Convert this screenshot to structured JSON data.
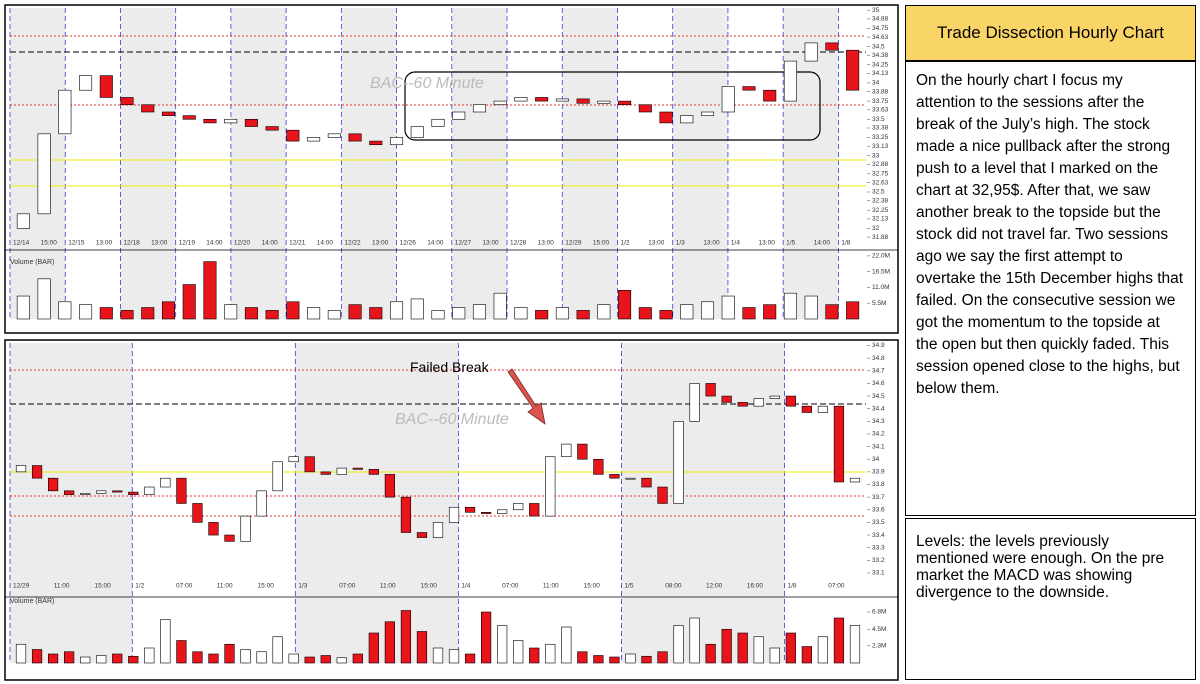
{
  "header": {
    "title": "Trade Dissection Hourly Chart"
  },
  "commentary": {
    "text": "On the hourly chart I focus my attention to the sessions after the break of the July’s high. The stock made a nice pullback after the strong push to a level that I marked on the chart at 32,95$. After that, we saw  another break to the topside but the stock did not travel far. Two sessions ago we say the first attempt to overtake the 15th December highs that failed. On the consecutive session we got the momentum to the topside at the open but then quickly faded. This session opened close to the highs, but below them."
  },
  "levels": {
    "text": "Levels: the levels previously mentioned were enough. On the pre market the MACD was showing divergence to the downside."
  },
  "charts": [
    {
      "type": "candlestick",
      "watermark": "BAC--60 Minute",
      "volume_label": "Volume (BAR)",
      "ylim": [
        31.84,
        35.03
      ],
      "yticks": [
        35,
        34.88,
        34.75,
        34.63,
        34.5,
        34.38,
        34.25,
        34.13,
        34,
        33.88,
        33.75,
        33.63,
        33.5,
        33.38,
        33.25,
        33.13,
        33,
        32.88,
        32.75,
        32.63,
        32.5,
        32.38,
        32.25,
        32.13,
        32,
        31.88
      ],
      "x_labels": [
        "12/14",
        "15:00",
        "12/15",
        "13:00",
        "12/18",
        "13:00",
        "12/19",
        "14:00",
        "12/20",
        "14:00",
        "12/21",
        "14:00",
        "12/22",
        "13:00",
        "12/26",
        "14:00",
        "12/27",
        "13:00",
        "12/28",
        "13:00",
        "12/29",
        "15:00",
        "1/2",
        "13:00",
        "1/3",
        "13:00",
        "1/4",
        "13:00",
        "1/5",
        "14:00",
        "1/8"
      ],
      "open": [
        32.0,
        32.2,
        33.3,
        33.9,
        34.1,
        33.8,
        33.7,
        33.6,
        33.55,
        33.5,
        33.45,
        33.5,
        33.4,
        33.35,
        33.2,
        33.25,
        33.3,
        33.2,
        33.15,
        33.25,
        33.4,
        33.5,
        33.6,
        33.7,
        33.75,
        33.8,
        33.75,
        33.78,
        33.72,
        33.75,
        33.7,
        33.6,
        33.45,
        33.55,
        33.6,
        33.95,
        33.9,
        33.75,
        34.3,
        34.55,
        34.45
      ],
      "close": [
        32.2,
        33.3,
        33.9,
        34.1,
        33.8,
        33.7,
        33.6,
        33.55,
        33.5,
        33.45,
        33.5,
        33.4,
        33.35,
        33.2,
        33.25,
        33.3,
        33.2,
        33.15,
        33.25,
        33.4,
        33.5,
        33.6,
        33.7,
        33.75,
        33.8,
        33.75,
        33.78,
        33.72,
        33.75,
        33.7,
        33.6,
        33.45,
        33.55,
        33.6,
        33.95,
        33.9,
        33.75,
        34.3,
        34.55,
        34.45,
        33.9
      ],
      "volume": [
        8,
        14,
        6,
        5,
        4,
        3,
        4,
        6,
        12,
        20,
        5,
        4,
        3,
        6,
        4,
        3,
        5,
        4,
        6,
        7,
        3,
        4,
        5,
        9,
        4,
        3,
        4,
        3,
        5,
        10,
        4,
        3,
        5,
        6,
        8,
        4,
        5,
        9,
        8,
        5,
        6
      ],
      "vlim": [
        0,
        23
      ],
      "vticks": [
        {
          "value": 22,
          "label": "22.0M"
        },
        {
          "value": 16.5,
          "label": "16.5M"
        },
        {
          "value": 11,
          "label": "11.0M"
        },
        {
          "value": 5.5,
          "label": "5.5M"
        }
      ]
    },
    {
      "type": "candlestick",
      "watermark": "BAC--60 Minute",
      "volume_label": "Volume (BAR)",
      "annotation": "Failed Break",
      "ylim": [
        33.06,
        34.92
      ],
      "yticks": [
        34.9,
        34.8,
        34.7,
        34.6,
        34.5,
        34.4,
        34.3,
        34.2,
        34.1,
        34,
        33.9,
        33.8,
        33.7,
        33.6,
        33.5,
        33.4,
        33.3,
        33.2,
        33.1
      ],
      "x_labels": [
        "12/29",
        "11:00",
        "15:00",
        "1/2",
        "07:00",
        "11:00",
        "15:00",
        "1/3",
        "07:00",
        "11:00",
        "15:00",
        "1/4",
        "07:00",
        "11:00",
        "15:00",
        "1/5",
        "08:00",
        "12:00",
        "16:00",
        "1/8",
        "07:00"
      ],
      "open": [
        33.9,
        33.95,
        33.85,
        33.75,
        33.72,
        33.73,
        33.75,
        33.74,
        33.72,
        33.78,
        33.85,
        33.65,
        33.5,
        33.4,
        33.35,
        33.55,
        33.75,
        33.98,
        34.02,
        33.9,
        33.88,
        33.93,
        33.92,
        33.88,
        33.7,
        33.42,
        33.38,
        33.5,
        33.62,
        33.58,
        33.57,
        33.6,
        33.65,
        33.55,
        34.02,
        34.12,
        34.0,
        33.88,
        33.85,
        33.85,
        33.78,
        33.65,
        34.3,
        34.6,
        34.5,
        34.45,
        34.42,
        34.48,
        34.5,
        34.42,
        34.37,
        34.42,
        33.82
      ],
      "close": [
        33.95,
        33.85,
        33.75,
        33.72,
        33.73,
        33.75,
        33.74,
        33.72,
        33.78,
        33.85,
        33.65,
        33.5,
        33.4,
        33.35,
        33.55,
        33.75,
        33.98,
        34.02,
        33.9,
        33.88,
        33.93,
        33.92,
        33.88,
        33.7,
        33.42,
        33.38,
        33.5,
        33.62,
        33.58,
        33.57,
        33.6,
        33.65,
        33.55,
        34.02,
        34.12,
        34.0,
        33.88,
        33.85,
        33.85,
        33.78,
        33.65,
        34.3,
        34.6,
        34.5,
        34.45,
        34.42,
        34.48,
        34.5,
        34.42,
        34.37,
        34.42,
        33.82,
        33.85
      ],
      "volume": [
        2.5,
        1.8,
        1.2,
        1.5,
        0.8,
        1.0,
        1.2,
        0.9,
        2.0,
        5.8,
        3.0,
        1.5,
        1.2,
        2.5,
        1.8,
        1.5,
        3.5,
        1.2,
        0.8,
        1.0,
        0.7,
        1.2,
        4.0,
        5.5,
        7.0,
        4.2,
        2.0,
        1.8,
        1.2,
        6.8,
        5.0,
        3.0,
        2.0,
        2.5,
        4.8,
        1.5,
        1.0,
        0.8,
        1.2,
        0.9,
        1.5,
        5.0,
        6.0,
        2.5,
        4.5,
        4.0,
        3.5,
        2.0,
        4.0,
        2.2,
        3.5,
        6.0,
        5.0
      ],
      "vlim": [
        0,
        8.4
      ],
      "vticks": [
        {
          "value": 6.8,
          "label": "6.8M"
        },
        {
          "value": 4.5,
          "label": "4.5M"
        },
        {
          "value": 2.3,
          "label": "2.3M"
        }
      ]
    }
  ]
}
